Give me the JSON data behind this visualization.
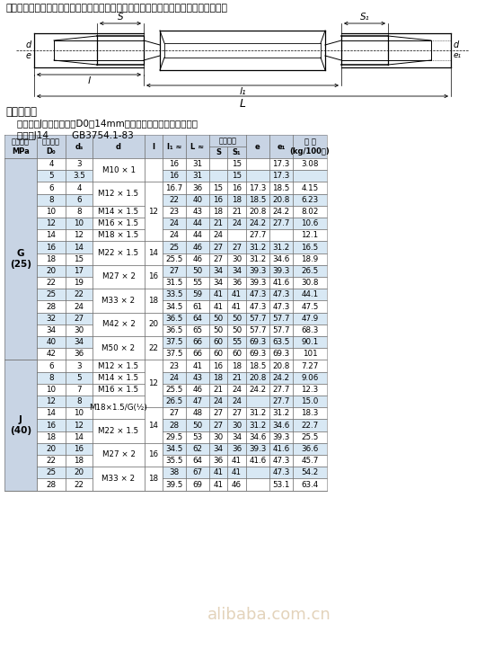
{
  "title_text": "本标准规定了卡套式端对接直通管接头，适用于油、气及一般腐蚀性介质的管路系统。",
  "label_example": "标记示例：",
  "label_desc1": "    公称压力J级、管子外径D0为14mm的卡套式端对接直通管接头：",
  "label_desc2": "    管接头J14        GB3754.1-83",
  "header_bg": "#c8d4e4",
  "row_bg_light": "#ffffff",
  "row_bg_dark": "#d8e8f4",
  "g_label": "G\n(25)",
  "j_label": "J\n(40)",
  "g_rows": [
    [
      "4",
      "3",
      "M10 × 1",
      "",
      "16",
      "31",
      "",
      "15",
      "",
      "17.3",
      "3.08"
    ],
    [
      "5",
      "3.5",
      "M10 × 1",
      "",
      "16",
      "31",
      "",
      "15",
      "",
      "17.3",
      ""
    ],
    [
      "6",
      "4",
      "M12 × 1.5",
      "12",
      "16.7",
      "36",
      "15",
      "16",
      "17.3",
      "18.5",
      "4.15"
    ],
    [
      "8",
      "6",
      "M12 × 1.5",
      "12",
      "22",
      "40",
      "16",
      "18",
      "18.5",
      "20.8",
      "6.23"
    ],
    [
      "10",
      "8",
      "M14 × 1.5",
      "12",
      "23",
      "43",
      "18",
      "21",
      "20.8",
      "24.2",
      "8.02"
    ],
    [
      "12",
      "10",
      "M16 × 1.5",
      "12",
      "24",
      "44",
      "21",
      "24",
      "24.2",
      "27.7",
      "10.6"
    ],
    [
      "14",
      "12",
      "M18 × 1.5",
      "12",
      "24",
      "44",
      "24",
      "",
      "27.7",
      "",
      "12.1"
    ],
    [
      "16",
      "14",
      "M22 × 1.5",
      "14",
      "25",
      "46",
      "27",
      "27",
      "31.2",
      "31.2",
      "16.5"
    ],
    [
      "18",
      "15",
      "M22 × 1.5",
      "14",
      "25.5",
      "46",
      "27",
      "30",
      "31.2",
      "34.6",
      "18.9"
    ],
    [
      "20",
      "17",
      "M27 × 2",
      "16",
      "27",
      "50",
      "34",
      "34",
      "39.3",
      "39.3",
      "26.5"
    ],
    [
      "22",
      "19",
      "M27 × 2",
      "16",
      "31.5",
      "55",
      "34",
      "36",
      "39.3",
      "41.6",
      "30.8"
    ],
    [
      "25",
      "22",
      "M33 × 2",
      "18",
      "33.5",
      "59",
      "41",
      "41",
      "47.3",
      "47.3",
      "44.1"
    ],
    [
      "28",
      "24",
      "M33 × 2",
      "18",
      "34.5",
      "61",
      "41",
      "41",
      "47.3",
      "47.3",
      "47.5"
    ],
    [
      "32",
      "27",
      "M42 × 2",
      "20",
      "36.5",
      "64",
      "50",
      "50",
      "57.7",
      "57.7",
      "47.9"
    ],
    [
      "34",
      "30",
      "M42 × 2",
      "20",
      "36.5",
      "65",
      "50",
      "50",
      "57.7",
      "57.7",
      "68.3"
    ],
    [
      "40",
      "34",
      "M50 × 2",
      "22",
      "37.5",
      "66",
      "60",
      "55",
      "69.3",
      "63.5",
      "90.1"
    ],
    [
      "42",
      "36",
      "M50 × 2",
      "22",
      "37.5",
      "66",
      "60",
      "60",
      "69.3",
      "69.3",
      "101"
    ]
  ],
  "j_rows": [
    [
      "6",
      "3",
      "M12 × 1.5",
      "12",
      "23",
      "41",
      "16",
      "18",
      "18.5",
      "20.8",
      "7.27"
    ],
    [
      "8",
      "5",
      "M14 × 1.5",
      "12",
      "24",
      "43",
      "18",
      "21",
      "20.8",
      "24.2",
      "9.06"
    ],
    [
      "10",
      "7",
      "M16 × 1.5",
      "12",
      "25.5",
      "46",
      "21",
      "24",
      "24.2",
      "27.7",
      "12.3"
    ],
    [
      "12",
      "8",
      "M18×1.5/G(½)",
      "12",
      "26.5",
      "47",
      "24",
      "24",
      "",
      "27.7",
      "15.0"
    ],
    [
      "14",
      "10",
      "M18×1.5/G(½)",
      "14",
      "27",
      "48",
      "27",
      "27",
      "31.2",
      "31.2",
      "18.3"
    ],
    [
      "16",
      "12",
      "M22 × 1.5",
      "14",
      "28",
      "50",
      "27",
      "30",
      "31.2",
      "34.6",
      "22.7"
    ],
    [
      "18",
      "14",
      "M22 × 1.5",
      "14",
      "29.5",
      "53",
      "30",
      "34",
      "34.6",
      "39.3",
      "25.5"
    ],
    [
      "20",
      "16",
      "M27 × 2",
      "16",
      "34.5",
      "62",
      "34",
      "36",
      "39.3",
      "41.6",
      "36.6"
    ],
    [
      "22",
      "18",
      "M27 × 2",
      "16",
      "35.5",
      "64",
      "36",
      "41",
      "41.6",
      "47.3",
      "45.7"
    ],
    [
      "25",
      "20",
      "M33 × 2",
      "18",
      "38",
      "67",
      "41",
      "41",
      "",
      "47.3",
      "54.2"
    ],
    [
      "28",
      "22",
      "M33 × 2",
      "18",
      "39.5",
      "69",
      "41",
      "46",
      "",
      "53.1",
      "63.4"
    ]
  ]
}
